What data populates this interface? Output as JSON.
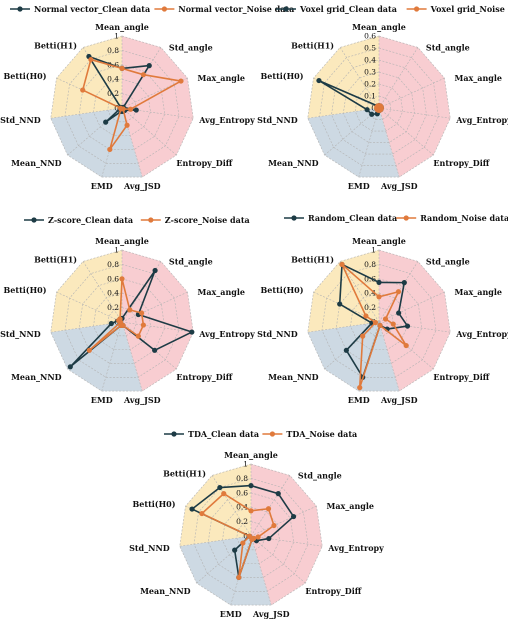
{
  "axes": [
    "Mean_angle",
    "Std_angle",
    "Max_angle",
    "Avg_Entropy",
    "Entropy_Diff",
    "Avg_JSD",
    "EMD",
    "Mean_NND",
    "Std_NND",
    "Betti(H0)",
    "Betti(H1)"
  ],
  "colors": {
    "clean": "#1d3b45",
    "noise": "#e07a3c",
    "pink": "#f8cdd1",
    "blue": "#cdd9e3",
    "yellow": "#fbe9bd",
    "grid": "#b3b3b3"
  },
  "chart_data": [
    {
      "type": "radar",
      "ticks": [
        "0",
        "0.2",
        "0.4",
        "0.6",
        "0.8",
        "1"
      ],
      "rmax": 1.0,
      "legend": [
        "Normal vector_Clean data",
        "Normal vector_Noise data"
      ],
      "series": [
        {
          "name": "Normal vector_Clean data",
          "values": [
            0.55,
            0.7,
            0.02,
            0.2,
            0.05,
            0.05,
            0.05,
            0.3,
            0.02,
            0.02,
            0.85
          ]
        },
        {
          "name": "Normal vector_Noise data",
          "values": [
            0.55,
            0.55,
            0.9,
            0.12,
            0.02,
            0.25,
            0.6,
            0.02,
            0.02,
            0.6,
            0.8
          ]
        }
      ]
    },
    {
      "type": "radar",
      "ticks": [
        "0",
        "0.1",
        "0.2",
        "0.3",
        "0.4",
        "0.5",
        "0.6"
      ],
      "rmax": 0.6,
      "legend": [
        "Voxel grid_Clean data",
        "Voxel grid_Noise data"
      ],
      "series": [
        {
          "name": "Voxel grid_Clean data",
          "values": [
            0.02,
            0.02,
            0.02,
            0.02,
            0.02,
            0.02,
            0.05,
            0.08,
            0.1,
            0.55,
            0.02
          ]
        },
        {
          "name": "Voxel grid_Noise data",
          "values": [
            0.02,
            0.02,
            0.02,
            0.02,
            0.02,
            0.02,
            0.02,
            0.02,
            0.02,
            0.02,
            0.02
          ]
        }
      ]
    },
    {
      "type": "radar",
      "ticks": [
        "0",
        "0.2",
        "0.4",
        "0.6",
        "0.8",
        "1"
      ],
      "rmax": 1.0,
      "legend": [
        "Z-score_Clean data",
        "Z-score_Noise data"
      ],
      "series": [
        {
          "name": "Z-score_Clean data",
          "values": [
            0.05,
            0.85,
            0.25,
            0.98,
            0.6,
            0.05,
            0.05,
            0.95,
            0.15,
            0.05,
            0.05
          ]
        },
        {
          "name": "Z-score_Noise data",
          "values": [
            0.6,
            0.2,
            0.3,
            0.3,
            0.3,
            0.05,
            0.05,
            0.6,
            0.02,
            0.05,
            0.05
          ]
        }
      ]
    },
    {
      "type": "radar",
      "ticks": [
        "0",
        "0.2",
        "0.4",
        "0.6",
        "0.8",
        "1"
      ],
      "rmax": 1.0,
      "legend": [
        "Random_Clean data",
        "Random_Noise data"
      ],
      "series": [
        {
          "name": "Random_Clean data",
          "values": [
            0.55,
            0.65,
            0.3,
            0.4,
            0.15,
            0.05,
            0.8,
            0.6,
            0.1,
            0.6,
            0.95
          ]
        },
        {
          "name": "Random_Noise data",
          "values": [
            0.35,
            0.5,
            0.1,
            0.2,
            0.5,
            0.05,
            0.95,
            0.3,
            0.05,
            0.2,
            0.95
          ]
        }
      ]
    },
    {
      "type": "radar",
      "ticks": [
        "0",
        "0.2",
        "0.4",
        "0.6",
        "0.8",
        "1"
      ],
      "rmax": 1.0,
      "legend": [
        "TDA_Clean data",
        "TDA_Noise data"
      ],
      "series": [
        {
          "name": "TDA_Clean data",
          "values": [
            0.7,
            0.7,
            0.65,
            0.25,
            0.1,
            0.05,
            0.6,
            0.3,
            0.02,
            0.9,
            0.8
          ]
        },
        {
          "name": "TDA_Noise data",
          "values": [
            0.35,
            0.45,
            0.35,
            0.1,
            0.05,
            0.05,
            0.6,
            0.15,
            0.02,
            0.75,
            0.7
          ]
        }
      ]
    }
  ]
}
